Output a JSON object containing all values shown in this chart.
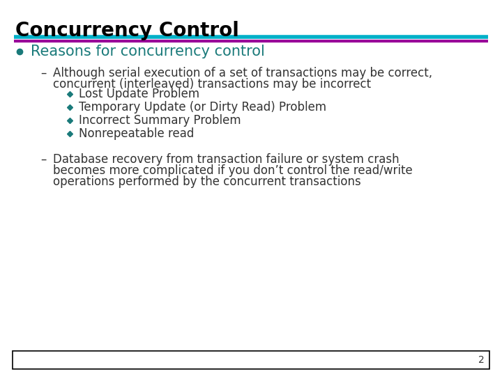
{
  "title": "Concurrency Control",
  "title_color": "#000000",
  "title_fontsize": 20,
  "line1_color": "#00B0C8",
  "line2_color": "#990099",
  "bg_color": "#FFFFFF",
  "bullet_color": "#1a7a7a",
  "bullet1_text": "Reasons for concurrency control",
  "bullet1_fontsize": 15,
  "dash1_text1": "Although serial execution of a set of transactions may be correct,",
  "dash1_text2": "concurrent (interleaved) transactions may be incorrect",
  "dash_fontsize": 12,
  "sub_bullets": [
    "Lost Update Problem",
    "Temporary Update (or Dirty Read) Problem",
    "Incorrect Summary Problem",
    "Nonrepeatable read"
  ],
  "sub_fontsize": 12,
  "dash2_text1": "Database recovery from transaction failure or system crash",
  "dash2_text2": "becomes more complicated if you don’t control the read/write",
  "dash2_text3": "operations performed by the concurrent transactions",
  "page_number": "2",
  "footer_box_color": "#000000",
  "text_color": "#333333"
}
